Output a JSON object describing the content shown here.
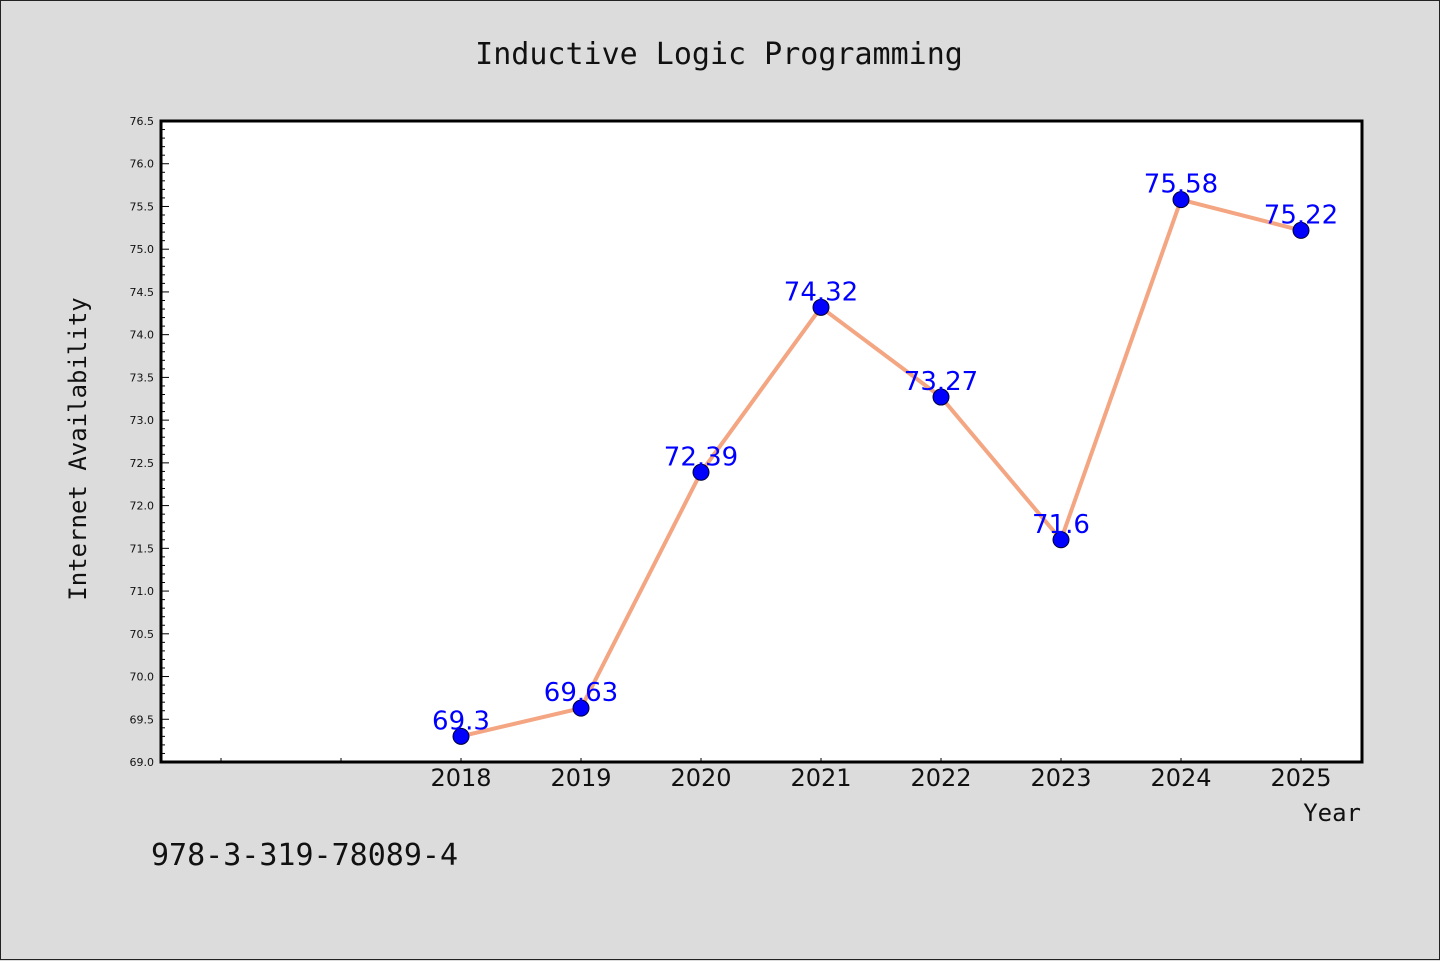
{
  "chart_data": {
    "type": "line",
    "title": "Inductive Logic Programming",
    "xlabel": "Year",
    "ylabel": "Internet Availability",
    "categories": [
      "2018",
      "2019",
      "2020",
      "2021",
      "2022",
      "2023",
      "2024",
      "2025"
    ],
    "series": [
      {
        "values": [
          69.3,
          69.63,
          72.39,
          74.32,
          73.27,
          71.6,
          75.58,
          75.22
        ],
        "data_labels": [
          "69.3",
          "69.63",
          "72.39",
          "74.32",
          "73.27",
          "71.6",
          "75.58",
          "75.22"
        ],
        "line_color": "#f4a582",
        "marker_color": "#0000ff"
      }
    ],
    "ylim": [
      69.0,
      76.5
    ],
    "yticks": [
      "69.0",
      "69.5",
      "70.0",
      "70.5",
      "71.0",
      "71.5",
      "72.0",
      "72.5",
      "73.0",
      "73.5",
      "74.0",
      "74.5",
      "75.0",
      "75.5",
      "76.0",
      "76.5"
    ],
    "grid": false,
    "legend": "none"
  },
  "footer": {
    "isbn": "978-3-319-78089-4"
  },
  "colors": {
    "background": "#dcdcdc",
    "plot_background": "#ffffff",
    "line": "#f4a582",
    "marker": "#0000ff",
    "data_label": "#0000ff"
  }
}
